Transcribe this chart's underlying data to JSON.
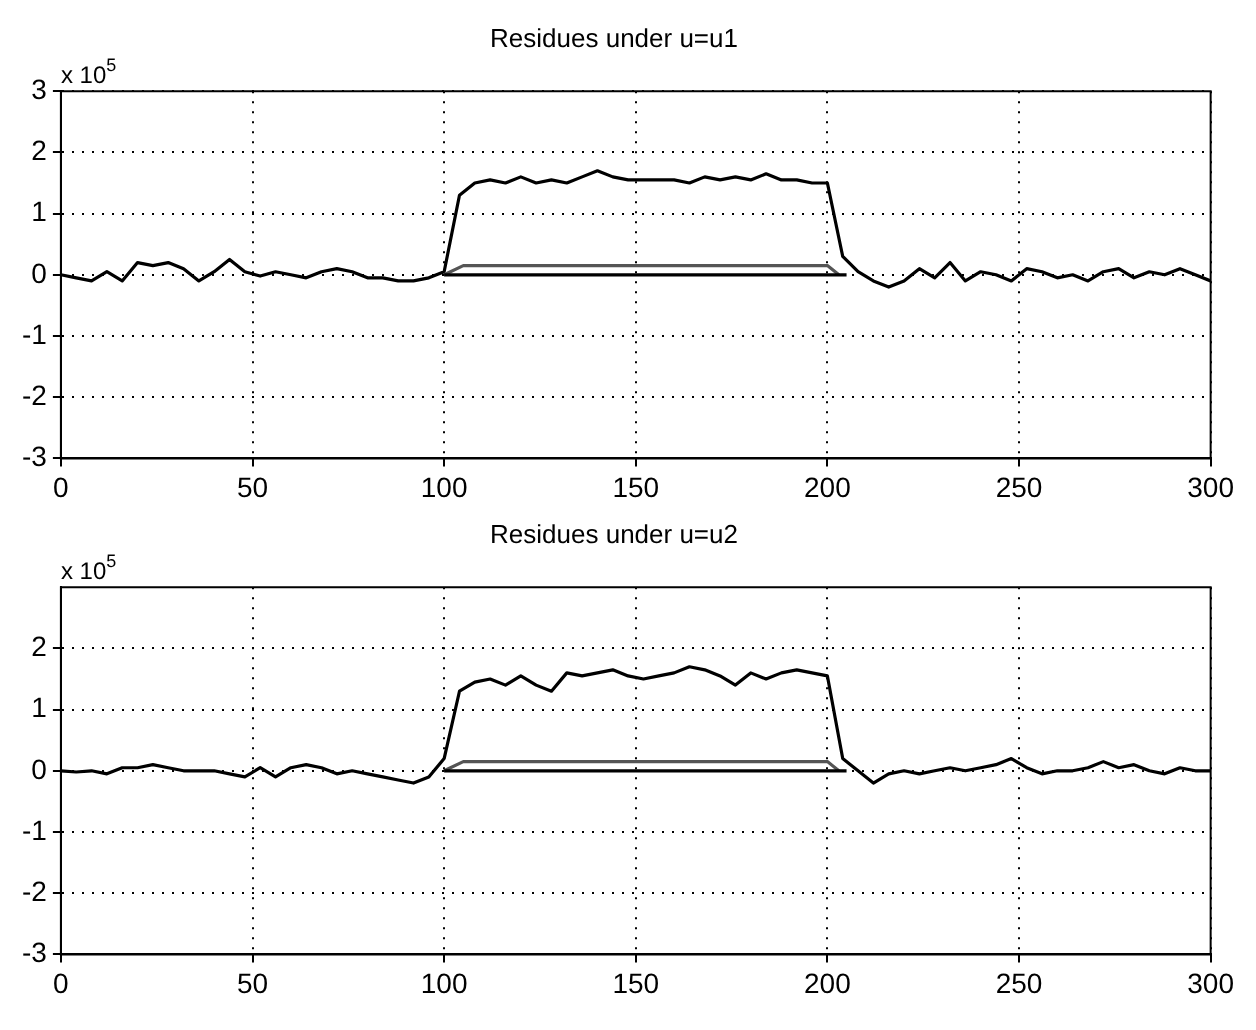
{
  "chart_data": [
    {
      "type": "line",
      "title": "Residues under u=u1",
      "annotations": [
        "x 10$^{5}$"
      ],
      "xlim": [
        0,
        300
      ],
      "xticks": [
        0,
        50,
        100,
        150,
        200,
        250,
        300
      ],
      "ylim": [
        -3,
        3
      ],
      "yticks": [
        -3,
        -2,
        -1,
        0,
        1,
        2,
        3
      ],
      "grid": true,
      "legend": false,
      "marker": "none",
      "line_style": "solid",
      "series": [
        {
          "color": "#000000",
          "x": [
            0,
            4,
            8,
            12,
            16,
            20,
            24,
            28,
            32,
            36,
            40,
            44,
            48,
            52,
            56,
            60,
            64,
            68,
            72,
            76,
            80,
            84,
            88,
            92,
            96,
            100,
            104,
            108,
            112,
            116,
            120,
            124,
            128,
            132,
            136,
            140,
            144,
            148,
            152,
            156,
            160,
            164,
            168,
            172,
            176,
            180,
            184,
            188,
            192,
            196,
            200,
            204,
            208,
            212,
            216,
            220,
            224,
            228,
            232,
            236,
            240,
            244,
            248,
            252,
            256,
            260,
            264,
            268,
            272,
            276,
            280,
            284,
            288,
            292,
            296,
            300
          ],
          "values": [
            0,
            -0.05,
            -0.1,
            0.05,
            -0.1,
            0.2,
            0.15,
            0.2,
            0.1,
            -0.1,
            0.05,
            0.25,
            0.05,
            -0.02,
            0.05,
            0,
            -0.05,
            0.05,
            0.1,
            0.05,
            -0.05,
            -0.05,
            -0.1,
            -0.1,
            -0.05,
            0.05,
            1.3,
            1.5,
            1.55,
            1.5,
            1.6,
            1.5,
            1.55,
            1.5,
            1.6,
            1.7,
            1.6,
            1.55,
            1.55,
            1.55,
            1.55,
            1.5,
            1.6,
            1.55,
            1.6,
            1.55,
            1.65,
            1.55,
            1.55,
            1.5,
            1.5,
            0.3,
            0.05,
            -0.1,
            -0.2,
            -0.1,
            0.1,
            -0.05,
            0.2,
            -0.1,
            0.05,
            0,
            -0.1,
            0.1,
            0.05,
            -0.05,
            0,
            -0.1,
            0.05,
            0.1,
            -0.05,
            0.05,
            0,
            0.1,
            0,
            -0.1
          ]
        },
        {
          "color": "#555555",
          "x": [
            100,
            105,
            200,
            203
          ],
          "values": [
            0,
            0.15,
            0.15,
            0
          ]
        },
        {
          "color": "#000000",
          "x": [
            100,
            205
          ],
          "values": [
            0,
            0
          ]
        }
      ]
    },
    {
      "type": "line",
      "title": "Residues under u=u2",
      "annotations": [
        "x 10$^{5}$"
      ],
      "xlim": [
        0,
        300
      ],
      "xticks": [
        0,
        50,
        100,
        150,
        200,
        250,
        300
      ],
      "ylim": [
        -3,
        3
      ],
      "yticks": [
        -3,
        -2,
        -1,
        0,
        1,
        2
      ],
      "grid": true,
      "legend": false,
      "marker": "none",
      "line_style": "solid",
      "series": [
        {
          "color": "#000000",
          "x": [
            0,
            4,
            8,
            12,
            16,
            20,
            24,
            28,
            32,
            36,
            40,
            44,
            48,
            52,
            56,
            60,
            64,
            68,
            72,
            76,
            80,
            84,
            88,
            92,
            96,
            100,
            104,
            108,
            112,
            116,
            120,
            124,
            128,
            132,
            136,
            140,
            144,
            148,
            152,
            156,
            160,
            164,
            168,
            172,
            176,
            180,
            184,
            188,
            192,
            196,
            200,
            204,
            208,
            212,
            216,
            220,
            224,
            228,
            232,
            236,
            240,
            244,
            248,
            252,
            256,
            260,
            264,
            268,
            272,
            276,
            280,
            284,
            288,
            292,
            296,
            300
          ],
          "values": [
            0,
            -0.02,
            0,
            -0.05,
            0.05,
            0.05,
            0.1,
            0.05,
            0,
            0,
            0,
            -0.05,
            -0.1,
            0.05,
            -0.1,
            0.05,
            0.1,
            0.05,
            -0.05,
            0,
            -0.05,
            -0.1,
            -0.15,
            -0.2,
            -0.1,
            0.2,
            1.3,
            1.45,
            1.5,
            1.4,
            1.55,
            1.4,
            1.3,
            1.6,
            1.55,
            1.6,
            1.65,
            1.55,
            1.5,
            1.55,
            1.6,
            1.7,
            1.65,
            1.55,
            1.4,
            1.6,
            1.5,
            1.6,
            1.65,
            1.6,
            1.55,
            0.2,
            0,
            -0.2,
            -0.05,
            0,
            -0.05,
            0,
            0.05,
            0,
            0.05,
            0.1,
            0.2,
            0.05,
            -0.05,
            0,
            0,
            0.05,
            0.15,
            0.05,
            0.1,
            0,
            -0.05,
            0.05,
            0,
            0
          ]
        },
        {
          "color": "#555555",
          "x": [
            100,
            105,
            200,
            203
          ],
          "values": [
            0,
            0.15,
            0.15,
            0
          ]
        },
        {
          "color": "#000000",
          "x": [
            100,
            205
          ],
          "values": [
            0,
            0
          ]
        }
      ]
    }
  ]
}
